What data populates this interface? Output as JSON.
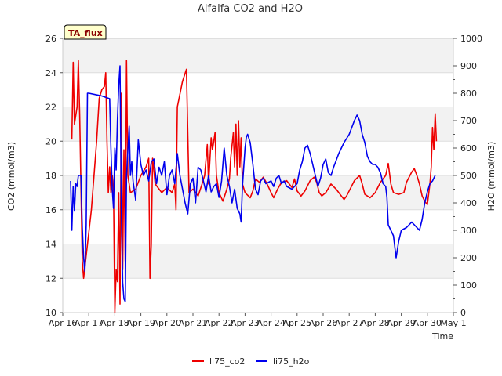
{
  "chart_data": {
    "type": "line",
    "title": "Alfalfa CO2 and H2O",
    "badge": "TA_flux",
    "xlabel": "Time",
    "ylabel_left": "CO2 (mmol/m3)",
    "ylabel_right": "H2O (mmol/m3)",
    "ylim_left": [
      10,
      26
    ],
    "ylim_right": [
      0,
      1000
    ],
    "xlim": [
      0,
      15
    ],
    "left_ticks": [
      10,
      12,
      14,
      16,
      18,
      20,
      22,
      24,
      26
    ],
    "right_ticks": [
      0,
      100,
      200,
      300,
      400,
      500,
      600,
      700,
      800,
      900,
      1000
    ],
    "x_tick_labels": [
      "Apr 16",
      "Apr 17",
      "Apr 18",
      "Apr 19",
      "Apr 20",
      "Apr 21",
      "Apr 22",
      "Apr 23",
      "Apr 24",
      "Apr 25",
      "Apr 26",
      "Apr 27",
      "Apr 28",
      "Apr 29",
      "Apr 30",
      "May 1"
    ],
    "grid": true,
    "legend_position": "bottom-center",
    "series": [
      {
        "name": "li75_co2",
        "axis": "left",
        "color": "#ee0000",
        "points": [
          [
            0.35,
            20.1
          ],
          [
            0.4,
            24.6
          ],
          [
            0.45,
            21.0
          ],
          [
            0.55,
            22.0
          ],
          [
            0.6,
            24.7
          ],
          [
            0.65,
            21.5
          ],
          [
            0.75,
            13.0
          ],
          [
            0.8,
            12.0
          ],
          [
            1.1,
            16.0
          ],
          [
            1.3,
            20.0
          ],
          [
            1.4,
            22.5
          ],
          [
            1.5,
            23.0
          ],
          [
            1.6,
            23.2
          ],
          [
            1.65,
            24.0
          ],
          [
            1.7,
            20.0
          ],
          [
            1.75,
            17.0
          ],
          [
            1.8,
            18.5
          ],
          [
            1.85,
            17.0
          ],
          [
            1.9,
            18.0
          ],
          [
            1.95,
            17.2
          ],
          [
            2.0,
            10.0
          ],
          [
            2.05,
            12.5
          ],
          [
            2.1,
            11.8
          ],
          [
            2.15,
            17.0
          ],
          [
            2.2,
            10.5
          ],
          [
            2.25,
            22.8
          ],
          [
            2.3,
            12.5
          ],
          [
            2.35,
            19.5
          ],
          [
            2.4,
            13.0
          ],
          [
            2.45,
            24.7
          ],
          [
            2.5,
            18.0
          ],
          [
            2.6,
            17.0
          ],
          [
            2.8,
            17.2
          ],
          [
            3.0,
            18.0
          ],
          [
            3.2,
            18.5
          ],
          [
            3.3,
            19.0
          ],
          [
            3.35,
            12.0
          ],
          [
            3.4,
            14.0
          ],
          [
            3.45,
            19.0
          ],
          [
            3.55,
            17.5
          ],
          [
            3.8,
            17.0
          ],
          [
            4.0,
            17.3
          ],
          [
            4.2,
            17.0
          ],
          [
            4.3,
            17.5
          ],
          [
            4.35,
            16.0
          ],
          [
            4.4,
            22.0
          ],
          [
            4.6,
            23.5
          ],
          [
            4.75,
            24.2
          ],
          [
            4.85,
            17.0
          ],
          [
            5.0,
            17.2
          ],
          [
            5.2,
            16.8
          ],
          [
            5.35,
            17.5
          ],
          [
            5.45,
            18.0
          ],
          [
            5.55,
            19.8
          ],
          [
            5.6,
            17.5
          ],
          [
            5.7,
            20.2
          ],
          [
            5.75,
            19.5
          ],
          [
            5.85,
            20.5
          ],
          [
            5.9,
            18.0
          ],
          [
            6.0,
            17.0
          ],
          [
            6.15,
            16.5
          ],
          [
            6.3,
            17.2
          ],
          [
            6.4,
            17.8
          ],
          [
            6.45,
            19.0
          ],
          [
            6.55,
            20.5
          ],
          [
            6.6,
            18.5
          ],
          [
            6.65,
            21.0
          ],
          [
            6.7,
            18.0
          ],
          [
            6.75,
            21.2
          ],
          [
            6.8,
            18.5
          ],
          [
            6.85,
            20.2
          ],
          [
            6.9,
            17.5
          ],
          [
            7.0,
            17.0
          ],
          [
            7.2,
            16.7
          ],
          [
            7.3,
            17.1
          ],
          [
            7.4,
            17.8
          ],
          [
            7.55,
            17.6
          ],
          [
            7.7,
            17.9
          ],
          [
            7.85,
            17.5
          ],
          [
            8.0,
            17.0
          ],
          [
            8.1,
            16.7
          ],
          [
            8.25,
            17.2
          ],
          [
            8.4,
            17.6
          ],
          [
            8.6,
            17.7
          ],
          [
            8.8,
            17.3
          ],
          [
            8.9,
            17.8
          ],
          [
            9.0,
            17.1
          ],
          [
            9.15,
            16.8
          ],
          [
            9.3,
            17.1
          ],
          [
            9.5,
            17.7
          ],
          [
            9.65,
            17.9
          ],
          [
            9.75,
            17.6
          ],
          [
            9.85,
            17.0
          ],
          [
            9.95,
            16.8
          ],
          [
            10.1,
            17.0
          ],
          [
            10.3,
            17.5
          ],
          [
            10.5,
            17.2
          ],
          [
            10.65,
            16.9
          ],
          [
            10.8,
            16.6
          ],
          [
            10.9,
            16.8
          ],
          [
            11.0,
            17.1
          ],
          [
            11.2,
            17.7
          ],
          [
            11.4,
            18.0
          ],
          [
            11.5,
            17.5
          ],
          [
            11.6,
            16.9
          ],
          [
            11.8,
            16.7
          ],
          [
            12.0,
            17.0
          ],
          [
            12.2,
            17.6
          ],
          [
            12.4,
            18.0
          ],
          [
            12.5,
            18.7
          ],
          [
            12.6,
            17.5
          ],
          [
            12.7,
            17.0
          ],
          [
            12.9,
            16.9
          ],
          [
            13.1,
            17.0
          ],
          [
            13.2,
            17.6
          ],
          [
            13.4,
            18.2
          ],
          [
            13.5,
            18.4
          ],
          [
            13.6,
            18.0
          ],
          [
            13.7,
            17.5
          ],
          [
            13.8,
            16.8
          ],
          [
            13.9,
            16.5
          ],
          [
            14.0,
            16.3
          ],
          [
            14.1,
            17.5
          ],
          [
            14.15,
            18.5
          ],
          [
            14.2,
            20.8
          ],
          [
            14.25,
            19.5
          ],
          [
            14.3,
            21.6
          ],
          [
            14.35,
            20.0
          ]
        ]
      },
      {
        "name": "li75_h2o",
        "axis": "right",
        "color": "#0000ee",
        "points": [
          [
            0.3,
            480
          ],
          [
            0.35,
            300
          ],
          [
            0.4,
            460
          ],
          [
            0.45,
            370
          ],
          [
            0.5,
            470
          ],
          [
            0.55,
            460
          ],
          [
            0.6,
            500
          ],
          [
            0.7,
            500
          ],
          [
            0.75,
            310
          ],
          [
            0.8,
            200
          ],
          [
            0.85,
            150
          ],
          [
            0.9,
            320
          ],
          [
            0.95,
            800
          ],
          [
            1.0,
            800
          ],
          [
            1.5,
            790
          ],
          [
            1.8,
            780
          ],
          [
            1.85,
            600
          ],
          [
            1.9,
            450
          ],
          [
            1.95,
            380
          ],
          [
            2.0,
            600
          ],
          [
            2.05,
            520
          ],
          [
            2.1,
            700
          ],
          [
            2.15,
            830
          ],
          [
            2.2,
            900
          ],
          [
            2.25,
            380
          ],
          [
            2.3,
            110
          ],
          [
            2.35,
            50
          ],
          [
            2.4,
            40
          ],
          [
            2.45,
            500
          ],
          [
            2.55,
            680
          ],
          [
            2.6,
            500
          ],
          [
            2.65,
            550
          ],
          [
            2.7,
            480
          ],
          [
            2.8,
            410
          ],
          [
            2.9,
            630
          ],
          [
            3.0,
            540
          ],
          [
            3.1,
            500
          ],
          [
            3.2,
            520
          ],
          [
            3.3,
            480
          ],
          [
            3.4,
            550
          ],
          [
            3.5,
            560
          ],
          [
            3.6,
            470
          ],
          [
            3.7,
            530
          ],
          [
            3.8,
            500
          ],
          [
            3.9,
            550
          ],
          [
            4.0,
            430
          ],
          [
            4.1,
            500
          ],
          [
            4.2,
            520
          ],
          [
            4.3,
            470
          ],
          [
            4.4,
            580
          ],
          [
            4.5,
            500
          ],
          [
            4.6,
            450
          ],
          [
            4.7,
            400
          ],
          [
            4.8,
            360
          ],
          [
            4.9,
            470
          ],
          [
            5.0,
            490
          ],
          [
            5.1,
            400
          ],
          [
            5.2,
            530
          ],
          [
            5.3,
            520
          ],
          [
            5.4,
            480
          ],
          [
            5.5,
            440
          ],
          [
            5.6,
            500
          ],
          [
            5.7,
            440
          ],
          [
            5.8,
            460
          ],
          [
            5.9,
            470
          ],
          [
            6.0,
            420
          ],
          [
            6.1,
            480
          ],
          [
            6.2,
            600
          ],
          [
            6.3,
            500
          ],
          [
            6.4,
            460
          ],
          [
            6.5,
            400
          ],
          [
            6.6,
            450
          ],
          [
            6.7,
            380
          ],
          [
            6.8,
            360
          ],
          [
            6.85,
            330
          ],
          [
            6.9,
            460
          ],
          [
            7.0,
            600
          ],
          [
            7.05,
            640
          ],
          [
            7.1,
            650
          ],
          [
            7.2,
            620
          ],
          [
            7.3,
            540
          ],
          [
            7.4,
            450
          ],
          [
            7.5,
            430
          ],
          [
            7.6,
            480
          ],
          [
            7.7,
            490
          ],
          [
            7.8,
            470
          ],
          [
            8.0,
            480
          ],
          [
            8.1,
            460
          ],
          [
            8.2,
            490
          ],
          [
            8.3,
            500
          ],
          [
            8.4,
            470
          ],
          [
            8.5,
            480
          ],
          [
            8.6,
            460
          ],
          [
            8.8,
            450
          ],
          [
            9.0,
            470
          ],
          [
            9.1,
            520
          ],
          [
            9.2,
            550
          ],
          [
            9.3,
            600
          ],
          [
            9.4,
            610
          ],
          [
            9.5,
            580
          ],
          [
            9.6,
            540
          ],
          [
            9.7,
            500
          ],
          [
            9.8,
            460
          ],
          [
            9.9,
            490
          ],
          [
            10.0,
            540
          ],
          [
            10.1,
            560
          ],
          [
            10.2,
            510
          ],
          [
            10.3,
            500
          ],
          [
            10.4,
            530
          ],
          [
            10.6,
            580
          ],
          [
            10.8,
            620
          ],
          [
            11.0,
            650
          ],
          [
            11.2,
            700
          ],
          [
            11.3,
            720
          ],
          [
            11.4,
            700
          ],
          [
            11.5,
            650
          ],
          [
            11.6,
            620
          ],
          [
            11.7,
            570
          ],
          [
            11.8,
            550
          ],
          [
            11.9,
            540
          ],
          [
            12.0,
            540
          ],
          [
            12.1,
            530
          ],
          [
            12.2,
            510
          ],
          [
            12.3,
            470
          ],
          [
            12.4,
            460
          ],
          [
            12.45,
            420
          ],
          [
            12.5,
            320
          ],
          [
            12.6,
            300
          ],
          [
            12.7,
            280
          ],
          [
            12.8,
            200
          ],
          [
            12.9,
            260
          ],
          [
            13.0,
            300
          ],
          [
            13.2,
            310
          ],
          [
            13.4,
            330
          ],
          [
            13.6,
            310
          ],
          [
            13.7,
            300
          ],
          [
            13.8,
            340
          ],
          [
            13.9,
            400
          ],
          [
            14.0,
            440
          ],
          [
            14.1,
            470
          ],
          [
            14.2,
            480
          ],
          [
            14.3,
            500
          ]
        ]
      }
    ]
  }
}
